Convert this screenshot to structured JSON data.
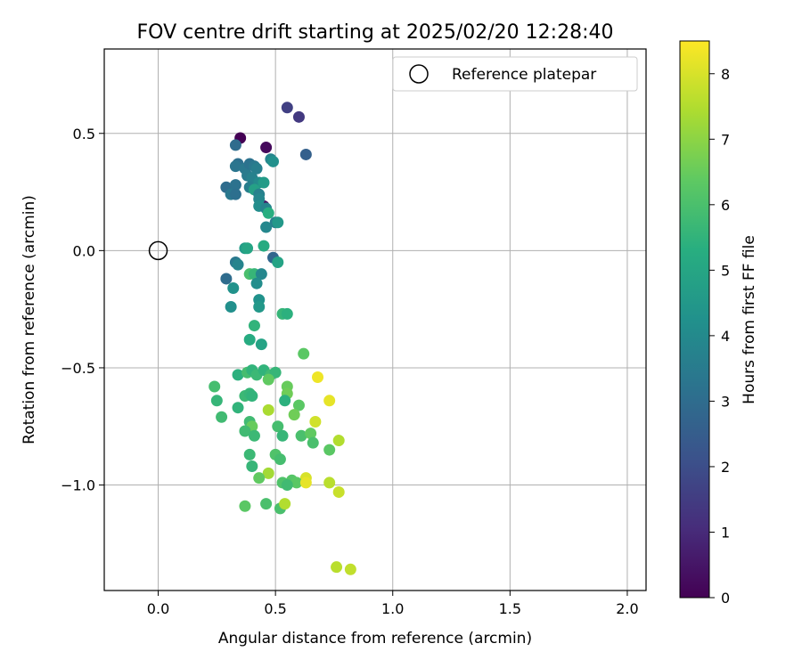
{
  "chart_data": {
    "type": "scatter",
    "title": "FOV centre drift starting at 2025/02/20 12:28:40",
    "xlabel": "Angular distance from reference (arcmin)",
    "ylabel": "Rotation from reference (arcmin)",
    "xlim": [
      -0.23,
      2.08
    ],
    "ylim": [
      -1.45,
      0.86
    ],
    "xticks": [
      0.0,
      0.5,
      1.0,
      1.5,
      2.0
    ],
    "xtick_labels": [
      "0.0",
      "0.5",
      "1.0",
      "1.5",
      "2.0"
    ],
    "yticks": [
      0.5,
      0.0,
      -0.5,
      -1.0
    ],
    "ytick_labels": [
      "0.5",
      "0.0",
      "−0.5",
      "−1.0"
    ],
    "grid": true,
    "legend": {
      "placement": "top-right",
      "entries": [
        "Reference platepar"
      ]
    },
    "reference_point": {
      "x": 0.0,
      "y": 0.0
    },
    "colorbar": {
      "label": "Hours from first FF file",
      "colormap": "viridis",
      "range": [
        0,
        8.5
      ],
      "ticks": [
        0,
        1,
        2,
        3,
        4,
        5,
        6,
        7,
        8
      ],
      "tick_labels": [
        "0",
        "1",
        "2",
        "3",
        "4",
        "5",
        "6",
        "7",
        "8"
      ]
    },
    "points": [
      {
        "x": 0.35,
        "y": 0.48,
        "c": 0.0
      },
      {
        "x": 0.46,
        "y": 0.44,
        "c": 0.2
      },
      {
        "x": 0.45,
        "y": 0.19,
        "c": 0.4
      },
      {
        "x": 0.55,
        "y": 0.61,
        "c": 1.6
      },
      {
        "x": 0.6,
        "y": 0.57,
        "c": 1.4
      },
      {
        "x": 0.63,
        "y": 0.41,
        "c": 2.6
      },
      {
        "x": 0.33,
        "y": 0.45,
        "c": 3.0
      },
      {
        "x": 0.34,
        "y": 0.37,
        "c": 3.1
      },
      {
        "x": 0.33,
        "y": 0.36,
        "c": 3.3
      },
      {
        "x": 0.37,
        "y": 0.35,
        "c": 3.4
      },
      {
        "x": 0.39,
        "y": 0.37,
        "c": 3.2
      },
      {
        "x": 0.41,
        "y": 0.36,
        "c": 3.4
      },
      {
        "x": 0.42,
        "y": 0.35,
        "c": 3.6
      },
      {
        "x": 0.38,
        "y": 0.32,
        "c": 3.5
      },
      {
        "x": 0.4,
        "y": 0.31,
        "c": 3.7
      },
      {
        "x": 0.48,
        "y": 0.39,
        "c": 3.8
      },
      {
        "x": 0.49,
        "y": 0.38,
        "c": 4.2
      },
      {
        "x": 0.43,
        "y": 0.29,
        "c": 4.0
      },
      {
        "x": 0.45,
        "y": 0.29,
        "c": 4.6
      },
      {
        "x": 0.29,
        "y": 0.27,
        "c": 3.0
      },
      {
        "x": 0.33,
        "y": 0.28,
        "c": 3.2
      },
      {
        "x": 0.31,
        "y": 0.24,
        "c": 3.4
      },
      {
        "x": 0.33,
        "y": 0.24,
        "c": 3.1
      },
      {
        "x": 0.39,
        "y": 0.27,
        "c": 3.6
      },
      {
        "x": 0.41,
        "y": 0.26,
        "c": 4.8
      },
      {
        "x": 0.43,
        "y": 0.24,
        "c": 3.7
      },
      {
        "x": 0.43,
        "y": 0.22,
        "c": 3.9
      },
      {
        "x": 0.43,
        "y": 0.19,
        "c": 4.1
      },
      {
        "x": 0.46,
        "y": 0.18,
        "c": 3.8
      },
      {
        "x": 0.47,
        "y": 0.16,
        "c": 5.3
      },
      {
        "x": 0.5,
        "y": 0.12,
        "c": 3.6
      },
      {
        "x": 0.51,
        "y": 0.12,
        "c": 4.5
      },
      {
        "x": 0.46,
        "y": 0.1,
        "c": 3.9
      },
      {
        "x": 0.37,
        "y": 0.01,
        "c": 4.6
      },
      {
        "x": 0.38,
        "y": 0.01,
        "c": 5.0
      },
      {
        "x": 0.45,
        "y": 0.02,
        "c": 5.2
      },
      {
        "x": 0.49,
        "y": -0.03,
        "c": 2.8
      },
      {
        "x": 0.51,
        "y": -0.05,
        "c": 4.9
      },
      {
        "x": 0.33,
        "y": -0.05,
        "c": 3.4
      },
      {
        "x": 0.34,
        "y": -0.06,
        "c": 3.8
      },
      {
        "x": 0.29,
        "y": -0.12,
        "c": 3.0
      },
      {
        "x": 0.39,
        "y": -0.1,
        "c": 6.0
      },
      {
        "x": 0.41,
        "y": -0.1,
        "c": 5.6
      },
      {
        "x": 0.44,
        "y": -0.1,
        "c": 3.9
      },
      {
        "x": 0.42,
        "y": -0.14,
        "c": 4.1
      },
      {
        "x": 0.32,
        "y": -0.16,
        "c": 4.3
      },
      {
        "x": 0.43,
        "y": -0.21,
        "c": 4.3
      },
      {
        "x": 0.43,
        "y": -0.24,
        "c": 4.5
      },
      {
        "x": 0.31,
        "y": -0.24,
        "c": 4.2
      },
      {
        "x": 0.53,
        "y": -0.27,
        "c": 5.6
      },
      {
        "x": 0.55,
        "y": -0.27,
        "c": 5.4
      },
      {
        "x": 0.41,
        "y": -0.32,
        "c": 5.5
      },
      {
        "x": 0.39,
        "y": -0.38,
        "c": 5.2
      },
      {
        "x": 0.44,
        "y": -0.4,
        "c": 4.9
      },
      {
        "x": 0.62,
        "y": -0.44,
        "c": 6.3
      },
      {
        "x": 0.34,
        "y": -0.53,
        "c": 5.4
      },
      {
        "x": 0.38,
        "y": -0.52,
        "c": 5.9
      },
      {
        "x": 0.4,
        "y": -0.51,
        "c": 5.5
      },
      {
        "x": 0.42,
        "y": -0.53,
        "c": 5.7
      },
      {
        "x": 0.45,
        "y": -0.51,
        "c": 5.5
      },
      {
        "x": 0.48,
        "y": -0.53,
        "c": 5.8
      },
      {
        "x": 0.5,
        "y": -0.52,
        "c": 5.6
      },
      {
        "x": 0.47,
        "y": -0.55,
        "c": 6.4
      },
      {
        "x": 0.68,
        "y": -0.54,
        "c": 8.3
      },
      {
        "x": 0.24,
        "y": -0.58,
        "c": 5.9
      },
      {
        "x": 0.55,
        "y": -0.58,
        "c": 6.5
      },
      {
        "x": 0.55,
        "y": -0.61,
        "c": 6.6
      },
      {
        "x": 0.37,
        "y": -0.62,
        "c": 5.7
      },
      {
        "x": 0.39,
        "y": -0.61,
        "c": 5.6
      },
      {
        "x": 0.4,
        "y": -0.62,
        "c": 5.5
      },
      {
        "x": 0.25,
        "y": -0.64,
        "c": 5.6
      },
      {
        "x": 0.54,
        "y": -0.64,
        "c": 5.4
      },
      {
        "x": 0.73,
        "y": -0.64,
        "c": 8.2
      },
      {
        "x": 0.6,
        "y": -0.66,
        "c": 6.3
      },
      {
        "x": 0.34,
        "y": -0.67,
        "c": 5.5
      },
      {
        "x": 0.47,
        "y": -0.68,
        "c": 7.4
      },
      {
        "x": 0.58,
        "y": -0.7,
        "c": 6.6
      },
      {
        "x": 0.27,
        "y": -0.71,
        "c": 5.8
      },
      {
        "x": 0.39,
        "y": -0.73,
        "c": 5.8
      },
      {
        "x": 0.67,
        "y": -0.73,
        "c": 7.9
      },
      {
        "x": 0.4,
        "y": -0.75,
        "c": 6.5
      },
      {
        "x": 0.51,
        "y": -0.75,
        "c": 5.9
      },
      {
        "x": 0.37,
        "y": -0.77,
        "c": 5.8
      },
      {
        "x": 0.41,
        "y": -0.79,
        "c": 5.7
      },
      {
        "x": 0.53,
        "y": -0.79,
        "c": 5.6
      },
      {
        "x": 0.61,
        "y": -0.79,
        "c": 6.0
      },
      {
        "x": 0.65,
        "y": -0.78,
        "c": 6.4
      },
      {
        "x": 0.66,
        "y": -0.82,
        "c": 6.0
      },
      {
        "x": 0.77,
        "y": -0.81,
        "c": 7.5
      },
      {
        "x": 0.73,
        "y": -0.85,
        "c": 6.3
      },
      {
        "x": 0.39,
        "y": -0.87,
        "c": 5.7
      },
      {
        "x": 0.5,
        "y": -0.87,
        "c": 6.1
      },
      {
        "x": 0.52,
        "y": -0.89,
        "c": 5.9
      },
      {
        "x": 0.4,
        "y": -0.92,
        "c": 5.6
      },
      {
        "x": 0.47,
        "y": -0.95,
        "c": 7.3
      },
      {
        "x": 0.43,
        "y": -0.97,
        "c": 6.4
      },
      {
        "x": 0.63,
        "y": -0.97,
        "c": 8.0
      },
      {
        "x": 0.57,
        "y": -0.98,
        "c": 6.2
      },
      {
        "x": 0.59,
        "y": -0.99,
        "c": 6.3
      },
      {
        "x": 0.63,
        "y": -0.99,
        "c": 8.2
      },
      {
        "x": 0.73,
        "y": -0.99,
        "c": 7.6
      },
      {
        "x": 0.53,
        "y": -0.99,
        "c": 6.1
      },
      {
        "x": 0.55,
        "y": -1.0,
        "c": 5.8
      },
      {
        "x": 0.77,
        "y": -1.03,
        "c": 7.8
      },
      {
        "x": 0.37,
        "y": -1.09,
        "c": 6.3
      },
      {
        "x": 0.46,
        "y": -1.08,
        "c": 6.0
      },
      {
        "x": 0.52,
        "y": -1.1,
        "c": 6.0
      },
      {
        "x": 0.54,
        "y": -1.08,
        "c": 7.5
      },
      {
        "x": 0.76,
        "y": -1.35,
        "c": 7.6
      },
      {
        "x": 0.82,
        "y": -1.36,
        "c": 7.7
      }
    ]
  }
}
